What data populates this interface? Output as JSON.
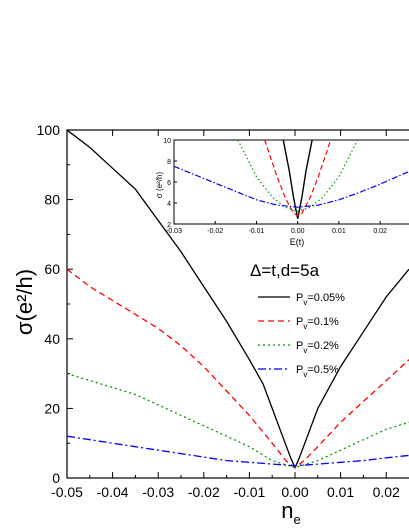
{
  "chart_data": [
    {
      "type": "line",
      "xlabel_main": "n",
      "xlabel_sub": "e",
      "ylabel": "σ(e²/h)",
      "xlim": [
        -0.05,
        0.025
      ],
      "ylim": [
        0,
        100
      ],
      "xticks": [
        -0.05,
        -0.04,
        -0.03,
        -0.02,
        -0.01,
        0.0,
        0.01,
        0.02
      ],
      "xtick_labels": [
        "-0.05",
        "-0.04",
        "-0.03",
        "-0.02",
        "-0.01",
        "0.00",
        "0.01",
        "0.02"
      ],
      "yticks": [
        0,
        20,
        40,
        60,
        80,
        100
      ],
      "ytick_labels": [
        "0",
        "20",
        "40",
        "60",
        "80",
        "100"
      ],
      "annotation": "Δ=t,d=5a",
      "legend_position": "right-middle",
      "series": [
        {
          "name": "P_v=0.05%",
          "label_main": "P",
          "label_sub": "v",
          "label_rest": "=0.05%",
          "color": "#000000",
          "dash": "solid",
          "x": [
            -0.05,
            -0.045,
            -0.04,
            -0.035,
            -0.03,
            -0.025,
            -0.02,
            -0.015,
            -0.01,
            -0.007,
            -0.005,
            -0.003,
            -0.001,
            0.0,
            0.001,
            0.003,
            0.005,
            0.01,
            0.015,
            0.02,
            0.025
          ],
          "y": [
            100,
            95,
            89,
            83,
            74,
            65,
            55,
            45,
            34,
            27,
            20,
            13,
            6,
            3,
            6,
            13,
            20,
            32,
            42,
            52,
            60
          ]
        },
        {
          "name": "P_v=0.1%",
          "label_main": "P",
          "label_sub": "v",
          "label_rest": "=0.1%",
          "color": "#ff0000",
          "dash": "6,4",
          "x": [
            -0.05,
            -0.045,
            -0.04,
            -0.035,
            -0.03,
            -0.025,
            -0.02,
            -0.015,
            -0.01,
            -0.005,
            -0.002,
            0.0,
            0.002,
            0.005,
            0.01,
            0.015,
            0.02,
            0.025
          ],
          "y": [
            60,
            55,
            51,
            47,
            43,
            38,
            32,
            25,
            18,
            10,
            5,
            3,
            5,
            9,
            16,
            22,
            28,
            34
          ]
        },
        {
          "name": "P_v=0.2%",
          "label_main": "P",
          "label_sub": "v",
          "label_rest": "=0.2%",
          "color": "#009900",
          "dash": "2,3",
          "x": [
            -0.05,
            -0.045,
            -0.04,
            -0.035,
            -0.03,
            -0.025,
            -0.02,
            -0.015,
            -0.01,
            -0.005,
            0.0,
            0.005,
            0.01,
            0.015,
            0.02,
            0.025
          ],
          "y": [
            30,
            28,
            26,
            24,
            21,
            18,
            15,
            12,
            9,
            5,
            3,
            5,
            8,
            11,
            14,
            16
          ]
        },
        {
          "name": "P_v=0.5%",
          "label_main": "P",
          "label_sub": "v",
          "label_rest": "=0.5%",
          "color": "#0000ff",
          "dash": "8,3,2,3",
          "x": [
            -0.05,
            -0.045,
            -0.04,
            -0.035,
            -0.03,
            -0.025,
            -0.02,
            -0.015,
            -0.01,
            -0.005,
            0.0,
            0.005,
            0.01,
            0.015,
            0.02,
            0.025
          ],
          "y": [
            12,
            11,
            10,
            9,
            8,
            7,
            6,
            5,
            4.5,
            4,
            3.5,
            4,
            4.5,
            5,
            5.8,
            6.5
          ]
        }
      ]
    },
    {
      "type": "line",
      "xlabel": "E(t)",
      "ylabel": "σ (e²/h)",
      "xlim": [
        -0.03,
        0.027
      ],
      "ylim": [
        2,
        10
      ],
      "xticks": [
        -0.03,
        -0.02,
        -0.01,
        0.0,
        0.01,
        0.02
      ],
      "xtick_labels": [
        "-0.03",
        "-0.02",
        "-0.01",
        "0.00",
        "0.01",
        "0.02"
      ],
      "yticks": [
        2,
        4,
        6,
        8,
        10
      ],
      "ytick_labels": [
        "2",
        "4",
        "6",
        "8",
        "10"
      ],
      "series": [
        {
          "color": "#000000",
          "dash": "solid",
          "x": [
            -0.0035,
            -0.002,
            -0.001,
            0.0,
            0.001,
            0.002,
            0.0035
          ],
          "y": [
            10,
            7,
            4.5,
            2.5,
            4.5,
            7,
            10
          ]
        },
        {
          "color": "#ff0000",
          "dash": "5,3",
          "x": [
            -0.008,
            -0.005,
            -0.003,
            -0.001,
            0.0,
            0.001,
            0.003,
            0.005,
            0.008
          ],
          "y": [
            10,
            6.5,
            4.5,
            3,
            2.8,
            3,
            4.5,
            6.5,
            10
          ]
        },
        {
          "color": "#009900",
          "dash": "1.5,2.5",
          "x": [
            -0.0145,
            -0.01,
            -0.006,
            -0.003,
            0.0,
            0.003,
            0.006,
            0.01,
            0.0145
          ],
          "y": [
            10,
            6.5,
            4.5,
            3.6,
            3.2,
            3.6,
            4.5,
            6.5,
            10
          ]
        },
        {
          "color": "#0000ff",
          "dash": "6,2,1.5,2",
          "x": [
            -0.03,
            -0.025,
            -0.02,
            -0.015,
            -0.01,
            -0.005,
            0.0,
            0.005,
            0.01,
            0.015,
            0.02,
            0.027
          ],
          "y": [
            7.5,
            6.7,
            5.9,
            5.1,
            4.3,
            3.8,
            3.6,
            3.8,
            4.3,
            5.0,
            5.8,
            7.0
          ]
        }
      ]
    }
  ]
}
